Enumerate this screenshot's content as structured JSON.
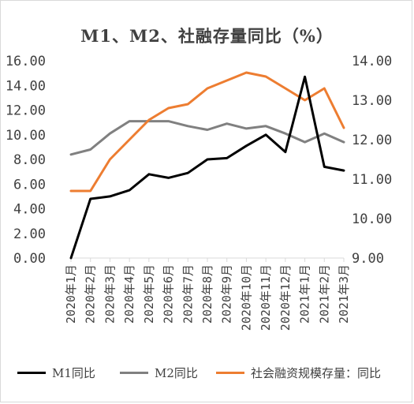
{
  "chart_data": {
    "type": "line",
    "title": "M1、M2、社融存量同比（%）",
    "categories": [
      "2020年1月",
      "2020年2月",
      "2020年3月",
      "2020年4月",
      "2020年5月",
      "2020年6月",
      "2020年7月",
      "2020年8月",
      "2020年9月",
      "2020年10月",
      "2020年11月",
      "2020年12月",
      "2021年1月",
      "2021年2月",
      "2021年3月"
    ],
    "y_left": {
      "min": 0,
      "max": 16,
      "ticks": [
        "0.00",
        "2.00",
        "4.00",
        "6.00",
        "8.00",
        "10.00",
        "12.00",
        "14.00",
        "16.00"
      ]
    },
    "y_right": {
      "min": 9,
      "max": 14,
      "ticks": [
        "9.00",
        "10.00",
        "11.00",
        "12.00",
        "13.00",
        "14.00"
      ]
    },
    "series": [
      {
        "name": "M1同比",
        "axis": "left",
        "color": "#000000",
        "values": [
          0.0,
          4.8,
          5.0,
          5.5,
          6.8,
          6.5,
          6.9,
          8.0,
          8.1,
          9.1,
          10.0,
          8.6,
          14.7,
          7.4,
          7.1
        ]
      },
      {
        "name": "M2同比",
        "axis": "left",
        "color": "#808080",
        "values": [
          8.4,
          8.8,
          10.1,
          11.1,
          11.1,
          11.1,
          10.7,
          10.4,
          10.9,
          10.5,
          10.7,
          10.1,
          9.4,
          10.1,
          9.4
        ]
      },
      {
        "name": "社会融资规模存量：同比",
        "axis": "right",
        "color": "#ED7D31",
        "values": [
          10.7,
          10.7,
          11.5,
          12.0,
          12.5,
          12.8,
          12.9,
          13.3,
          13.5,
          13.7,
          13.6,
          13.3,
          13.0,
          13.3,
          12.3
        ]
      }
    ],
    "legend_position": "bottom",
    "grid": false
  }
}
